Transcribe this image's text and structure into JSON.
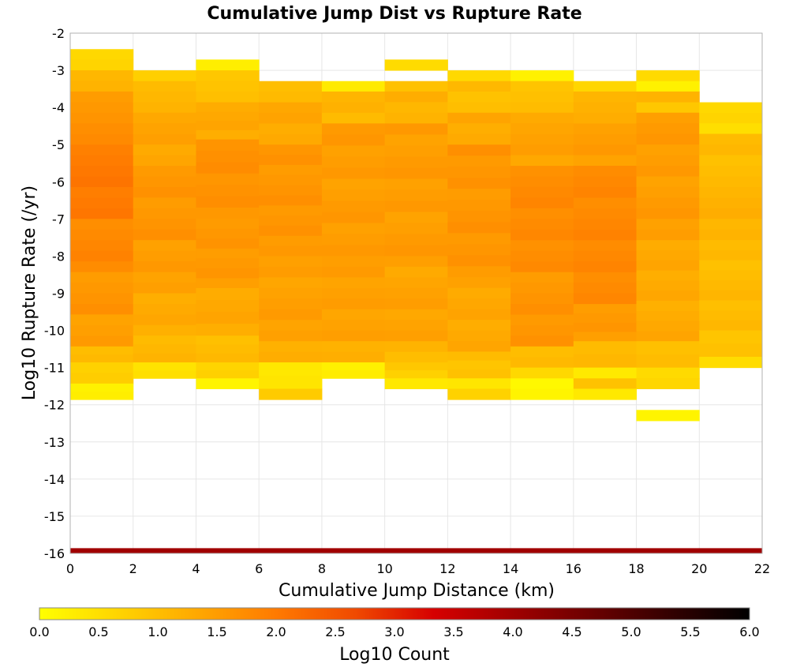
{
  "chart_data": {
    "type": "heatmap",
    "title": "Cumulative Jump Dist vs Rupture Rate",
    "xlabel": "Cumulative Jump Distance (km)",
    "ylabel": "Log10 Rupture Rate (/yr)",
    "xlim": [
      0,
      22
    ],
    "ylim": [
      -16,
      -2
    ],
    "x_ticks": [
      "0",
      "2",
      "4",
      "6",
      "8",
      "10",
      "12",
      "14",
      "16",
      "18",
      "20",
      "22"
    ],
    "y_ticks": [
      "-2",
      "-3",
      "-4",
      "-5",
      "-6",
      "-7",
      "-8",
      "-9",
      "-10",
      "-11",
      "-12",
      "-13",
      "-14",
      "-15",
      "-16"
    ],
    "x_bin_width": 2,
    "y_bin_height": 0.2857,
    "grid": true,
    "colorbar": {
      "label": "Log10 Count",
      "min": 0,
      "max": 6,
      "ticks": [
        "0.0",
        "0.5",
        "1.0",
        "1.5",
        "2.0",
        "2.5",
        "3.0",
        "3.5",
        "4.0",
        "4.5",
        "5.0",
        "5.5",
        "6.0"
      ],
      "colormap": [
        "#ffff00",
        "#ffd400",
        "#ffa800",
        "#ff7a00",
        "#f04a00",
        "#d60000",
        "#a00000",
        "#6b0000",
        "#330000",
        "#000000"
      ]
    },
    "columns": [
      {
        "x_start": 0,
        "segments": [
          {
            "y_top": -2.43,
            "y_bottom": -3.0,
            "value": 0.7
          },
          {
            "y_top": -3.0,
            "y_bottom": -3.57,
            "value": 1.2
          },
          {
            "y_top": -3.57,
            "y_bottom": -4.43,
            "value": 1.6
          },
          {
            "y_top": -4.43,
            "y_bottom": -5.0,
            "value": 1.8
          },
          {
            "y_top": -5.0,
            "y_bottom": -7.0,
            "value": 2.0
          },
          {
            "y_top": -7.0,
            "y_bottom": -8.43,
            "value": 1.8
          },
          {
            "y_top": -8.43,
            "y_bottom": -9.57,
            "value": 1.6
          },
          {
            "y_top": -9.57,
            "y_bottom": -10.43,
            "value": 1.5
          },
          {
            "y_top": -10.43,
            "y_bottom": -10.86,
            "value": 1.1
          },
          {
            "y_top": -10.86,
            "y_bottom": -11.43,
            "value": 0.8
          },
          {
            "y_top": -11.43,
            "y_bottom": -11.86,
            "value": 0.3
          }
        ]
      },
      {
        "x_start": 2,
        "segments": [
          {
            "y_top": -3.0,
            "y_bottom": -3.29,
            "value": 0.8
          },
          {
            "y_top": -3.29,
            "y_bottom": -4.14,
            "value": 1.1
          },
          {
            "y_top": -4.14,
            "y_bottom": -5.57,
            "value": 1.4
          },
          {
            "y_top": -5.57,
            "y_bottom": -7.57,
            "value": 1.6
          },
          {
            "y_top": -7.57,
            "y_bottom": -9.0,
            "value": 1.5
          },
          {
            "y_top": -9.0,
            "y_bottom": -10.14,
            "value": 1.3
          },
          {
            "y_top": -10.14,
            "y_bottom": -10.86,
            "value": 1.1
          },
          {
            "y_top": -10.86,
            "y_bottom": -11.29,
            "value": 0.5
          }
        ]
      },
      {
        "x_start": 4,
        "segments": [
          {
            "y_top": -2.71,
            "y_bottom": -3.0,
            "value": 0.3
          },
          {
            "y_top": -3.0,
            "y_bottom": -3.86,
            "value": 0.9
          },
          {
            "y_top": -3.86,
            "y_bottom": -4.86,
            "value": 1.3
          },
          {
            "y_top": -4.86,
            "y_bottom": -7.0,
            "value": 1.65
          },
          {
            "y_top": -7.0,
            "y_bottom": -8.86,
            "value": 1.55
          },
          {
            "y_top": -8.86,
            "y_bottom": -10.14,
            "value": 1.3
          },
          {
            "y_top": -10.14,
            "y_bottom": -10.86,
            "value": 1.0
          },
          {
            "y_top": -10.86,
            "y_bottom": -11.29,
            "value": 0.7
          },
          {
            "y_top": -11.29,
            "y_bottom": -11.57,
            "value": 0.2
          }
        ]
      },
      {
        "x_start": 6,
        "segments": [
          {
            "y_top": -3.29,
            "y_bottom": -3.86,
            "value": 1.0
          },
          {
            "y_top": -3.86,
            "y_bottom": -5.0,
            "value": 1.35
          },
          {
            "y_top": -5.0,
            "y_bottom": -8.0,
            "value": 1.6
          },
          {
            "y_top": -8.0,
            "y_bottom": -10.29,
            "value": 1.45
          },
          {
            "y_top": -10.29,
            "y_bottom": -10.86,
            "value": 1.2
          },
          {
            "y_top": -10.86,
            "y_bottom": -11.57,
            "value": 0.35
          },
          {
            "y_top": -11.57,
            "y_bottom": -11.86,
            "value": 0.8
          }
        ]
      },
      {
        "x_start": 8,
        "segments": [
          {
            "y_top": -3.29,
            "y_bottom": -3.57,
            "value": 0.3
          },
          {
            "y_top": -3.57,
            "y_bottom": -4.43,
            "value": 1.1
          },
          {
            "y_top": -4.43,
            "y_bottom": -8.0,
            "value": 1.5
          },
          {
            "y_top": -8.0,
            "y_bottom": -10.29,
            "value": 1.45
          },
          {
            "y_top": -10.29,
            "y_bottom": -10.86,
            "value": 1.15
          },
          {
            "y_top": -10.86,
            "y_bottom": -11.29,
            "value": 0.2
          }
        ]
      },
      {
        "x_start": 10,
        "segments": [
          {
            "y_top": -2.71,
            "y_bottom": -3.0,
            "value": 0.5
          },
          {
            "y_top": -3.29,
            "y_bottom": -3.57,
            "value": 0.9
          },
          {
            "y_top": -3.57,
            "y_bottom": -4.43,
            "value": 1.2
          },
          {
            "y_top": -4.43,
            "y_bottom": -8.0,
            "value": 1.5
          },
          {
            "y_top": -8.0,
            "y_bottom": -10.29,
            "value": 1.4
          },
          {
            "y_top": -10.29,
            "y_bottom": -10.86,
            "value": 1.1
          },
          {
            "y_top": -10.86,
            "y_bottom": -11.29,
            "value": 0.8
          },
          {
            "y_top": -11.29,
            "y_bottom": -11.57,
            "value": 0.3
          }
        ]
      },
      {
        "x_start": 12,
        "segments": [
          {
            "y_top": -3.0,
            "y_bottom": -3.29,
            "value": 0.5
          },
          {
            "y_top": -3.29,
            "y_bottom": -4.14,
            "value": 1.0
          },
          {
            "y_top": -4.14,
            "y_bottom": -5.0,
            "value": 1.3
          },
          {
            "y_top": -5.0,
            "y_bottom": -8.57,
            "value": 1.6
          },
          {
            "y_top": -8.57,
            "y_bottom": -10.57,
            "value": 1.35
          },
          {
            "y_top": -10.57,
            "y_bottom": -11.29,
            "value": 0.95
          },
          {
            "y_top": -11.29,
            "y_bottom": -11.57,
            "value": 0.3
          },
          {
            "y_top": -11.57,
            "y_bottom": -11.86,
            "value": 0.6
          }
        ]
      },
      {
        "x_start": 14,
        "segments": [
          {
            "y_top": -3.0,
            "y_bottom": -3.29,
            "value": 0.3
          },
          {
            "y_top": -3.29,
            "y_bottom": -4.14,
            "value": 1.0
          },
          {
            "y_top": -4.14,
            "y_bottom": -5.57,
            "value": 1.4
          },
          {
            "y_top": -5.57,
            "y_bottom": -8.43,
            "value": 1.75
          },
          {
            "y_top": -8.43,
            "y_bottom": -10.43,
            "value": 1.6
          },
          {
            "y_top": -10.43,
            "y_bottom": -11.0,
            "value": 1.1
          },
          {
            "y_top": -11.0,
            "y_bottom": -11.29,
            "value": 0.7
          },
          {
            "y_top": -11.29,
            "y_bottom": -11.86,
            "value": 0.2
          }
        ]
      },
      {
        "x_start": 16,
        "segments": [
          {
            "y_top": -3.29,
            "y_bottom": -3.57,
            "value": 0.7
          },
          {
            "y_top": -3.57,
            "y_bottom": -4.43,
            "value": 1.2
          },
          {
            "y_top": -4.43,
            "y_bottom": -5.57,
            "value": 1.5
          },
          {
            "y_top": -5.57,
            "y_bottom": -9.29,
            "value": 1.8
          },
          {
            "y_top": -9.29,
            "y_bottom": -10.29,
            "value": 1.55
          },
          {
            "y_top": -10.29,
            "y_bottom": -11.0,
            "value": 1.1
          },
          {
            "y_top": -11.0,
            "y_bottom": -11.29,
            "value": 0.4
          },
          {
            "y_top": -11.29,
            "y_bottom": -11.57,
            "value": 1.0
          },
          {
            "y_top": -11.57,
            "y_bottom": -11.86,
            "value": 0.4
          }
        ]
      },
      {
        "x_start": 18,
        "segments": [
          {
            "y_top": -3.0,
            "y_bottom": -3.29,
            "value": 0.6
          },
          {
            "y_top": -3.29,
            "y_bottom": -3.57,
            "value": 0.25
          },
          {
            "y_top": -3.57,
            "y_bottom": -3.86,
            "value": 1.2
          },
          {
            "y_top": -3.86,
            "y_bottom": -4.14,
            "value": 0.9
          },
          {
            "y_top": -4.14,
            "y_bottom": -7.57,
            "value": 1.5
          },
          {
            "y_top": -7.57,
            "y_bottom": -10.29,
            "value": 1.3
          },
          {
            "y_top": -10.29,
            "y_bottom": -11.0,
            "value": 1.0
          },
          {
            "y_top": -11.0,
            "y_bottom": -11.57,
            "value": 0.6
          },
          {
            "y_top": -12.14,
            "y_bottom": -12.43,
            "value": 0.2
          }
        ]
      },
      {
        "x_start": 20,
        "segments": [
          {
            "y_top": -3.86,
            "y_bottom": -4.71,
            "value": 0.6
          },
          {
            "y_top": -4.71,
            "y_bottom": -6.43,
            "value": 1.05
          },
          {
            "y_top": -6.43,
            "y_bottom": -7.57,
            "value": 1.2
          },
          {
            "y_top": -7.57,
            "y_bottom": -10.0,
            "value": 1.05
          },
          {
            "y_top": -10.0,
            "y_bottom": -10.71,
            "value": 0.9
          },
          {
            "y_top": -10.71,
            "y_bottom": -11.0,
            "value": 0.55
          }
        ]
      }
    ],
    "bottom_band": {
      "x_start": 0,
      "x_end": 22,
      "y_top": -15.86,
      "y_bottom": -16.0,
      "value": 4.0
    }
  }
}
